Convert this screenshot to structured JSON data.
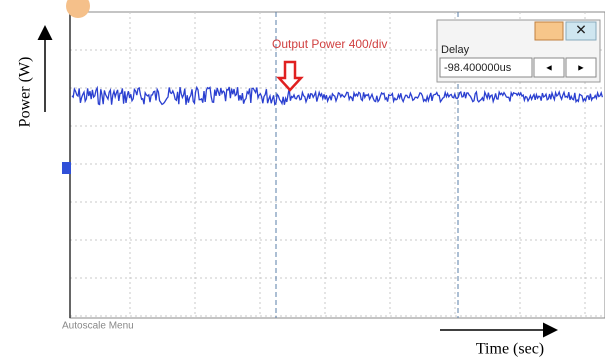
{
  "axes": {
    "y_label": "Power (W)",
    "x_label": "Time (sec)"
  },
  "scope": {
    "channel_label": "Output Power 400/div",
    "footer": "Autoscale Menu"
  },
  "delay_panel": {
    "title": "Delay",
    "value": "-98.400000us",
    "prev": "◄",
    "next": "►"
  }
}
